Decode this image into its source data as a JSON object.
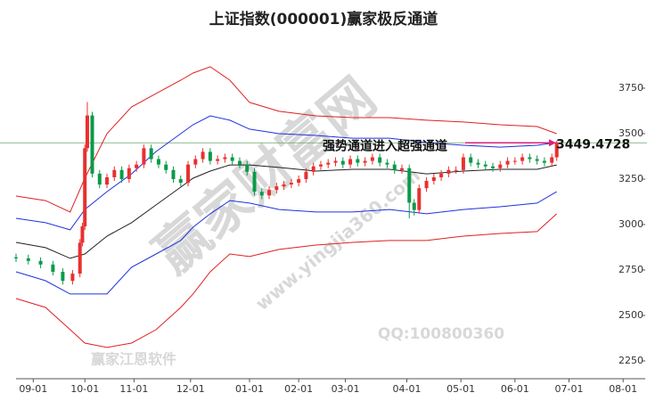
{
  "chart_data": {
    "type": "candlestick",
    "title": "上证指数(000001)赢家极反通道",
    "annotation": "强势通道进入超强通道",
    "last_value": 3449.4728,
    "watermark": [
      "赢家财富网",
      "QQ:100800360",
      "赢家江恩软件",
      "www.yingjia360.com"
    ],
    "xlim": [
      -7,
      249
    ],
    "ylim": [
      2152,
      4039
    ],
    "yticks": [
      2250,
      2500,
      2750,
      3000,
      3250,
      3500,
      3750
    ],
    "xticks": [
      {
        "value": 0,
        "label": "09-01"
      },
      {
        "value": 21,
        "label": "10-01"
      },
      {
        "value": 41,
        "label": "11-01"
      },
      {
        "value": 64,
        "label": "12-01"
      },
      {
        "value": 88,
        "label": "01-01"
      },
      {
        "value": 108,
        "label": "02-01"
      },
      {
        "value": 127,
        "label": "03-01"
      },
      {
        "value": 152,
        "label": "04-01"
      },
      {
        "value": 174,
        "label": "05-01"
      },
      {
        "value": 196,
        "label": "06-01"
      },
      {
        "value": 218,
        "label": "07-01"
      },
      {
        "value": 240,
        "label": "08-01"
      }
    ],
    "up_color": "#e8302f",
    "down_color": "#0a9a4a",
    "x": [
      -7,
      -2,
      3,
      8,
      12,
      16,
      19,
      20,
      21,
      22,
      24,
      27,
      30,
      33,
      36,
      39,
      42,
      45,
      48,
      51,
      54,
      57,
      60,
      63,
      66,
      69,
      72,
      75,
      78,
      81,
      84,
      87,
      90,
      93,
      96,
      99,
      102,
      105,
      108,
      111,
      114,
      117,
      120,
      123,
      126,
      129,
      132,
      135,
      138,
      141,
      144,
      147,
      150,
      153,
      155,
      157,
      160,
      163,
      166,
      169,
      172,
      175,
      178,
      181,
      184,
      187,
      190,
      193,
      196,
      199,
      202,
      205,
      208,
      211,
      213
    ],
    "open": [
      2820,
      2814,
      2800,
      2780,
      2740,
      2690,
      2730,
      2900,
      2990,
      3420,
      3600,
      3280,
      3220,
      3260,
      3300,
      3250,
      3310,
      3330,
      3420,
      3360,
      3330,
      3300,
      3250,
      3230,
      3330,
      3360,
      3400,
      3350,
      3360,
      3370,
      3350,
      3330,
      3290,
      3180,
      3160,
      3190,
      3210,
      3220,
      3230,
      3250,
      3290,
      3320,
      3330,
      3340,
      3350,
      3330,
      3360,
      3340,
      3350,
      3370,
      3340,
      3330,
      3300,
      3310,
      3120,
      3080,
      3200,
      3240,
      3260,
      3280,
      3300,
      3300,
      3370,
      3340,
      3330,
      3320,
      3310,
      3330,
      3350,
      3350,
      3370,
      3360,
      3350,
      3340,
      3370
    ],
    "high": [
      2840,
      2834,
      2820,
      2800,
      2760,
      2750,
      2920,
      3010,
      3440,
      3674,
      3620,
      3300,
      3280,
      3320,
      3320,
      3330,
      3350,
      3440,
      3440,
      3380,
      3350,
      3320,
      3270,
      3350,
      3380,
      3420,
      3420,
      3380,
      3390,
      3390,
      3370,
      3350,
      3310,
      3200,
      3210,
      3230,
      3240,
      3250,
      3270,
      3310,
      3340,
      3350,
      3360,
      3370,
      3370,
      3380,
      3380,
      3370,
      3390,
      3390,
      3360,
      3350,
      3330,
      3330,
      3140,
      3220,
      3260,
      3280,
      3300,
      3320,
      3320,
      3390,
      3390,
      3360,
      3350,
      3340,
      3350,
      3370,
      3370,
      3390,
      3390,
      3380,
      3370,
      3390,
      3460
    ],
    "low": [
      2794,
      2780,
      2760,
      2720,
      2670,
      2670,
      2710,
      2880,
      2970,
      3400,
      3260,
      3200,
      3200,
      3240,
      3230,
      3230,
      3290,
      3310,
      3340,
      3310,
      3280,
      3230,
      3210,
      3210,
      3310,
      3340,
      3330,
      3330,
      3340,
      3330,
      3310,
      3270,
      3160,
      3140,
      3140,
      3170,
      3190,
      3200,
      3210,
      3230,
      3270,
      3300,
      3310,
      3320,
      3310,
      3310,
      3320,
      3320,
      3330,
      3320,
      3310,
      3280,
      3280,
      3034,
      3050,
      3060,
      3180,
      3220,
      3240,
      3260,
      3280,
      3280,
      3320,
      3310,
      3300,
      3290,
      3290,
      3310,
      3330,
      3330,
      3340,
      3330,
      3320,
      3320,
      3350
    ],
    "close": [
      2814,
      2800,
      2780,
      2740,
      2690,
      2730,
      2900,
      2990,
      3420,
      3600,
      3280,
      3220,
      3260,
      3300,
      3250,
      3310,
      3330,
      3420,
      3360,
      3330,
      3300,
      3250,
      3230,
      3330,
      3360,
      3400,
      3350,
      3360,
      3370,
      3350,
      3330,
      3290,
      3180,
      3160,
      3190,
      3210,
      3220,
      3230,
      3250,
      3290,
      3320,
      3330,
      3340,
      3350,
      3330,
      3360,
      3340,
      3350,
      3370,
      3340,
      3330,
      3300,
      3310,
      3120,
      3080,
      3200,
      3240,
      3260,
      3280,
      3300,
      3300,
      3370,
      3340,
      3330,
      3320,
      3310,
      3330,
      3350,
      3350,
      3370,
      3360,
      3350,
      3340,
      3370,
      3449
    ],
    "band_x": [
      -7,
      5,
      15,
      21,
      30,
      40,
      50,
      60,
      65,
      72,
      80,
      88,
      100,
      115,
      130,
      145,
      160,
      175,
      190,
      205,
      213
    ],
    "bands": [
      {
        "color": "#e02020",
        "values": [
          3157,
          3132,
          3069,
          3255,
          3500,
          3647,
          3721,
          3794,
          3833,
          3868,
          3794,
          3672,
          3623,
          3598,
          3588,
          3588,
          3574,
          3564,
          3549,
          3539,
          3500
        ]
      },
      {
        "color": "#2030e0",
        "values": [
          3034,
          3010,
          2971,
          3083,
          3181,
          3279,
          3402,
          3500,
          3549,
          3598,
          3574,
          3525,
          3500,
          3490,
          3475,
          3475,
          3451,
          3436,
          3426,
          3436,
          3451
        ]
      },
      {
        "color": "#222222",
        "values": [
          2902,
          2873,
          2814,
          2838,
          2936,
          3010,
          3108,
          3206,
          3255,
          3294,
          3328,
          3328,
          3314,
          3294,
          3304,
          3304,
          3279,
          3294,
          3304,
          3304,
          3328
        ]
      },
      {
        "color": "#2030e0",
        "values": [
          2740,
          2691,
          2618,
          2618,
          2618,
          2765,
          2838,
          2912,
          2985,
          3059,
          3132,
          3118,
          3083,
          3069,
          3069,
          3083,
          3059,
          3083,
          3098,
          3118,
          3181
        ]
      },
      {
        "color": "#e02020",
        "values": [
          2593,
          2544,
          2422,
          2348,
          2324,
          2348,
          2422,
          2544,
          2618,
          2740,
          2838,
          2824,
          2863,
          2887,
          2902,
          2912,
          2912,
          2936,
          2951,
          2961,
          3059
        ]
      }
    ]
  }
}
